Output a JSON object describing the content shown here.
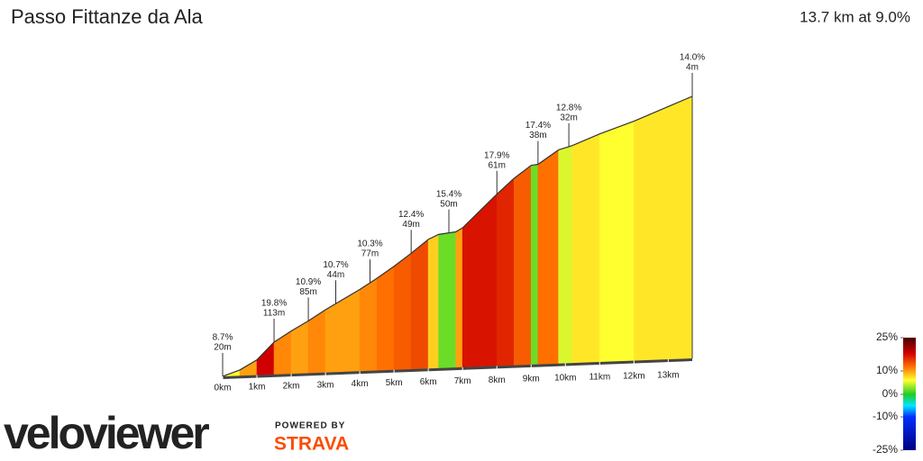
{
  "chart_data": {
    "type": "gradient-profile",
    "title": "Passo Fittanze da Ala",
    "subtitle": "13.7 km at 9.0%",
    "bins": [
      0,
      0.5,
      1,
      1.5,
      2,
      2.5,
      3,
      3.5,
      4,
      4.5,
      5,
      5.5,
      6,
      6.3,
      6.8,
      7,
      7.5,
      8,
      8.5,
      9,
      9.2,
      9.8,
      10.2,
      11,
      12,
      13,
      13.7
    ],
    "grades": [
      6,
      10,
      18,
      11,
      10,
      11,
      10,
      10,
      11,
      12,
      13,
      14,
      8,
      2,
      10,
      17,
      17,
      16,
      13,
      2,
      12,
      5,
      7,
      6,
      7,
      7
    ],
    "xlim": [
      0,
      13.7
    ],
    "xticks": [
      {
        "value": 0,
        "label": "0km"
      },
      {
        "value": 1,
        "label": "1km"
      },
      {
        "value": 2,
        "label": "2km"
      },
      {
        "value": 3,
        "label": "3km"
      },
      {
        "value": 4,
        "label": "4km"
      },
      {
        "value": 5,
        "label": "5km"
      },
      {
        "value": 6,
        "label": "6km"
      },
      {
        "value": 7,
        "label": "7km"
      },
      {
        "value": 8,
        "label": "8km"
      },
      {
        "value": 9,
        "label": "9km"
      },
      {
        "value": 10,
        "label": "10km"
      },
      {
        "value": 11,
        "label": "11km"
      },
      {
        "value": 12,
        "label": "12km"
      },
      {
        "value": 13,
        "label": "13km"
      }
    ],
    "annotations": [
      {
        "x": 0,
        "grade": "8.7%",
        "length": "20m"
      },
      {
        "x": 1.5,
        "grade": "19.8%",
        "length": "113m"
      },
      {
        "x": 2.5,
        "grade": "10.9%",
        "length": "85m"
      },
      {
        "x": 3.3,
        "grade": "10.7%",
        "length": "44m"
      },
      {
        "x": 4.3,
        "grade": "10.3%",
        "length": "77m"
      },
      {
        "x": 5.5,
        "grade": "12.4%",
        "length": "49m"
      },
      {
        "x": 6.6,
        "grade": "15.4%",
        "length": "50m"
      },
      {
        "x": 8.0,
        "grade": "17.9%",
        "length": "61m"
      },
      {
        "x": 9.2,
        "grade": "17.4%",
        "length": "38m"
      },
      {
        "x": 10.1,
        "grade": "12.8%",
        "length": "32m"
      },
      {
        "x": 13.7,
        "grade": "14.0%",
        "length": "4m"
      }
    ],
    "color_stops": [
      [
        25,
        "#4a0000"
      ],
      [
        18,
        "#d00000"
      ],
      [
        12,
        "#ff7000"
      ],
      [
        6,
        "#ffff30"
      ],
      [
        0,
        "#22cc22"
      ],
      [
        -5,
        "#00e5ff"
      ],
      [
        -10,
        "#0030ff"
      ],
      [
        -25,
        "#000080"
      ]
    ],
    "legend_ticks": [
      {
        "value": 25,
        "label": "25%"
      },
      {
        "value": 10,
        "label": "10%"
      },
      {
        "value": 0,
        "label": "0%"
      },
      {
        "value": -10,
        "label": "-10%"
      },
      {
        "value": -25,
        "label": "-25%"
      }
    ],
    "brand": "veloviewer",
    "powered_by": "POWERED BY",
    "partner": "STRAVA"
  }
}
